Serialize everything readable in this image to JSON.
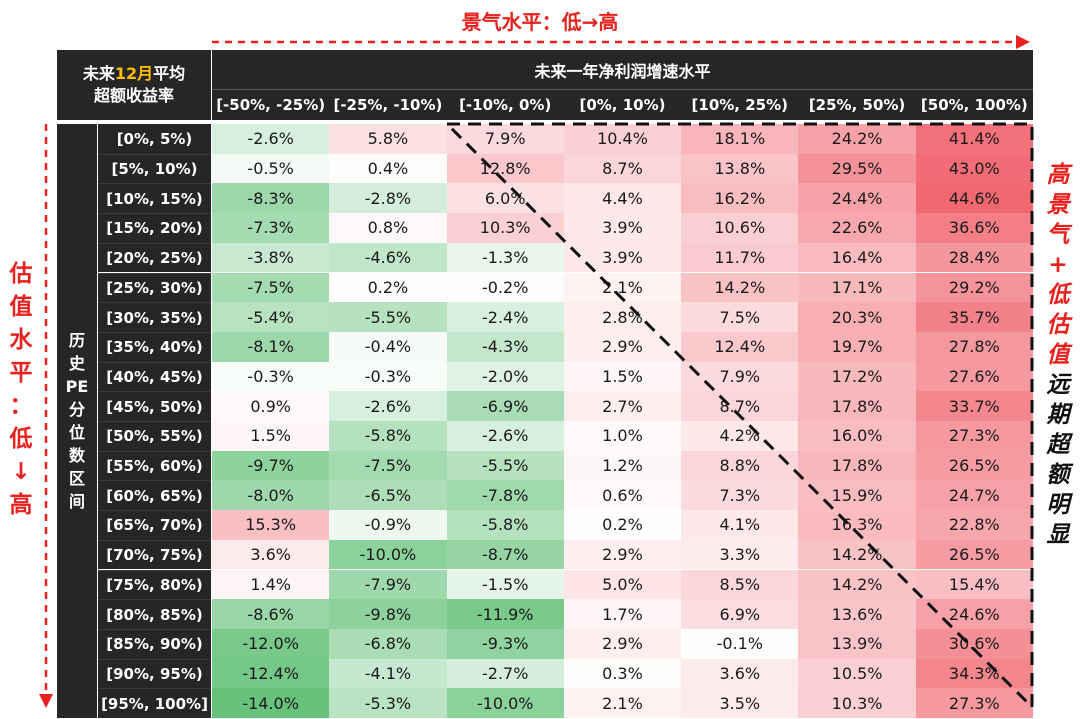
{
  "top_label": "景气水平：低→高",
  "left_label": [
    "估",
    "值",
    "水",
    "平",
    "：",
    "低",
    "↓",
    "高"
  ],
  "right_label": [
    {
      "t": "高",
      "c": "r"
    },
    {
      "t": "景",
      "c": "r"
    },
    {
      "t": "气",
      "c": "r"
    },
    {
      "t": "+",
      "c": "r"
    },
    {
      "t": "低",
      "c": "r"
    },
    {
      "t": "估",
      "c": "r"
    },
    {
      "t": "值",
      "c": "r"
    },
    {
      "t": "远",
      "c": "k"
    },
    {
      "t": "期",
      "c": "k"
    },
    {
      "t": "超",
      "c": "k"
    },
    {
      "t": "额",
      "c": "k"
    },
    {
      "t": "明",
      "c": "k"
    },
    {
      "t": "显",
      "c": "k"
    }
  ],
  "colors": {
    "header_bg": "#262626",
    "accent_red": "#e8211e",
    "highlight_orange": "#ffc000",
    "positive": "#f0606a",
    "negative": "#5fbf74"
  },
  "chart_data": {
    "type": "heatmap",
    "corner_label_parts": [
      "未来",
      "12月",
      "平均"
    ],
    "corner_label_line2": "超额收益率",
    "x_title": "未来一年净利润增速水平",
    "y_title_chars": [
      "历",
      "史",
      "PE",
      "分",
      "位",
      "数",
      "区",
      "间"
    ],
    "x_categories": [
      "[-50%, -25%)",
      "[-25%, -10%)",
      "[-10%, 0%)",
      "[0%, 10%)",
      "[10%, 25%)",
      "[25%, 50%)",
      "[50%, 100%)"
    ],
    "y_categories": [
      "[0%, 5%)",
      "[5%, 10%)",
      "[10%, 15%)",
      "[15%, 20%)",
      "[20%, 25%)",
      "[25%, 30%)",
      "[30%, 35%)",
      "[35%, 40%)",
      "[40%, 45%)",
      "[45%, 50%)",
      "[50%, 55%)",
      "[55%, 60%)",
      "[60%, 65%)",
      "[65%, 70%)",
      "[70%, 75%)",
      "[75%, 80%)",
      "[80%, 85%)",
      "[85%, 90%)",
      "[90%, 95%)",
      "[95%, 100%]"
    ],
    "values": [
      [
        -2.6,
        5.8,
        7.9,
        10.4,
        18.1,
        24.2,
        41.4
      ],
      [
        -0.5,
        0.4,
        12.8,
        8.7,
        13.8,
        29.5,
        43.0
      ],
      [
        -8.3,
        -2.8,
        6.0,
        4.4,
        16.2,
        24.4,
        44.6
      ],
      [
        -7.3,
        0.8,
        10.3,
        3.9,
        10.6,
        22.6,
        36.6
      ],
      [
        -3.8,
        -4.6,
        -1.3,
        3.9,
        11.7,
        16.4,
        28.4
      ],
      [
        -7.5,
        0.2,
        -0.2,
        2.1,
        14.2,
        17.1,
        29.2
      ],
      [
        -5.4,
        -5.5,
        -2.4,
        2.8,
        7.5,
        20.3,
        35.7
      ],
      [
        -8.1,
        -0.4,
        -4.3,
        2.9,
        12.4,
        19.7,
        27.8
      ],
      [
        -0.3,
        -0.3,
        -2.0,
        1.5,
        7.9,
        17.2,
        27.6
      ],
      [
        0.9,
        -2.6,
        -6.9,
        2.7,
        8.7,
        17.8,
        33.7
      ],
      [
        1.5,
        -5.8,
        -2.6,
        1.0,
        4.2,
        16.0,
        27.3
      ],
      [
        -9.7,
        -7.5,
        -5.5,
        1.2,
        8.8,
        17.8,
        26.5
      ],
      [
        -8.0,
        -6.5,
        -7.8,
        0.6,
        7.3,
        15.9,
        24.7
      ],
      [
        15.3,
        -0.9,
        -5.8,
        0.2,
        4.1,
        16.3,
        22.8
      ],
      [
        3.6,
        -10.0,
        -8.7,
        2.9,
        3.3,
        14.2,
        26.5
      ],
      [
        1.4,
        -7.9,
        -1.5,
        5.0,
        8.5,
        14.2,
        15.4
      ],
      [
        -8.6,
        -9.8,
        -11.9,
        1.7,
        6.9,
        13.6,
        24.6
      ],
      [
        -12.0,
        -6.8,
        -9.3,
        2.9,
        -0.1,
        13.9,
        30.6
      ],
      [
        -12.4,
        -4.1,
        -2.7,
        0.3,
        3.6,
        10.5,
        34.3
      ],
      [
        -14.0,
        -5.3,
        -10.0,
        2.1,
        3.5,
        10.3,
        27.3
      ]
    ],
    "value_suffix": "%",
    "highlight_region": "upper-right triangle"
  }
}
